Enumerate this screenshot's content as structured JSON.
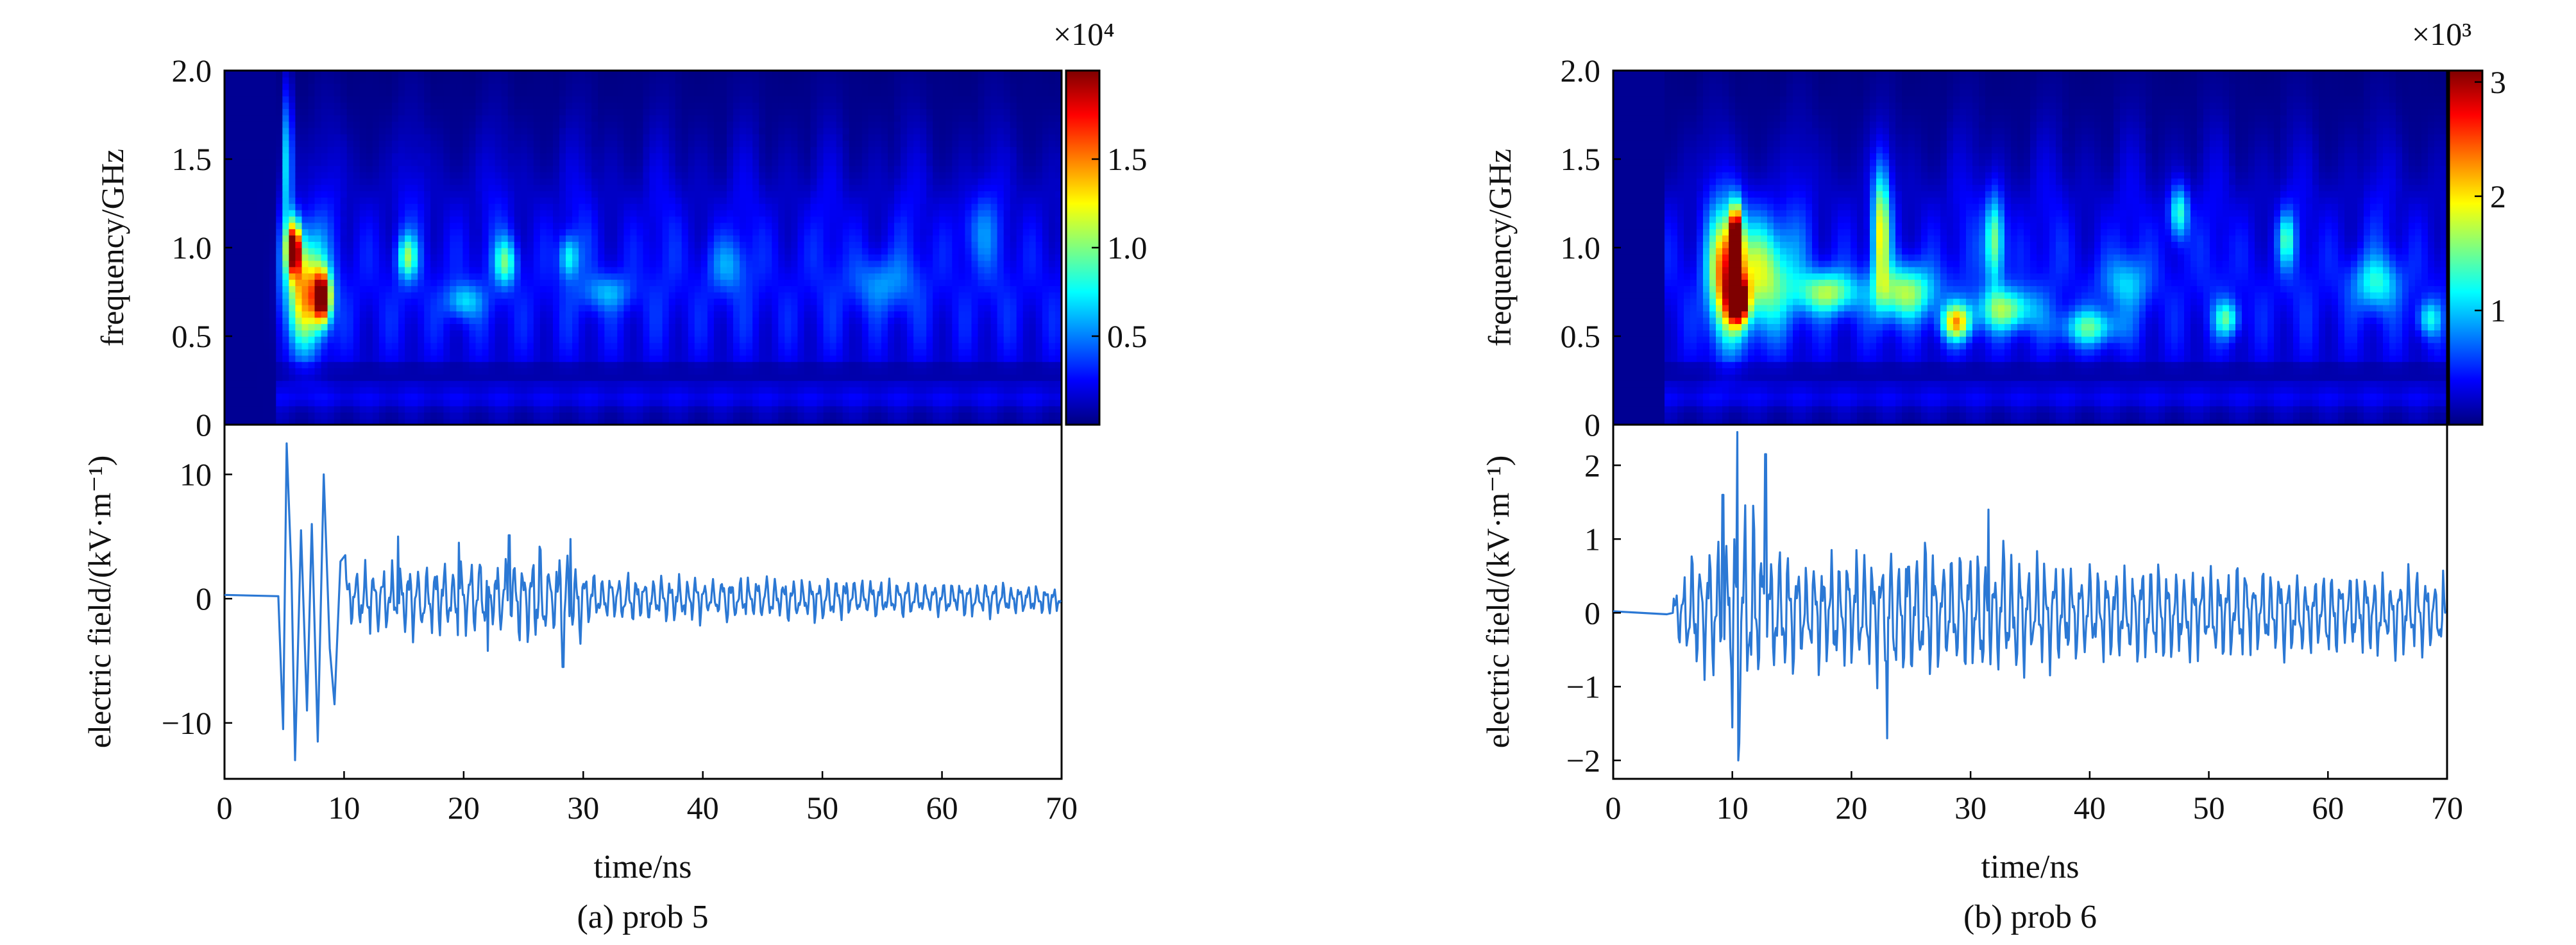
{
  "chart_data": [
    {
      "id": "a",
      "type": "heatmap",
      "caption": "(a) prob 5",
      "spectrogram": {
        "ylabel": "frequency/GHz",
        "ylim": [
          0,
          2.0
        ],
        "yticks": [
          {
            "v": 0,
            "label": "0"
          },
          {
            "v": 0.5,
            "label": "0.5"
          },
          {
            "v": 1.0,
            "label": "1.0"
          },
          {
            "v": 1.5,
            "label": "1.5"
          },
          {
            "v": 2.0,
            "label": "2.0"
          }
        ],
        "colorbar": {
          "scale_label": "×10⁴",
          "multiplier": 10000,
          "range": [
            0,
            2.0
          ],
          "ticks": [
            {
              "v": 0.5,
              "label": "0.5"
            },
            {
              "v": 1.0,
              "label": "1.0"
            },
            {
              "v": 1.5,
              "label": "1.5"
            }
          ],
          "colormap": [
            "#00007f",
            "#0000ff",
            "#007fff",
            "#00ffff",
            "#7fff7f",
            "#ffff00",
            "#ff7f00",
            "#ff0000",
            "#7f0000"
          ]
        },
        "hotspots": [
          {
            "t": 5.8,
            "f": 1.0,
            "value": 1.8,
            "dt": 0.6,
            "df": 0.15
          },
          {
            "t": 8.2,
            "f": 0.72,
            "value": 1.7,
            "dt": 0.7,
            "df": 0.14
          },
          {
            "t": 6.8,
            "f": 0.75,
            "value": 1.2,
            "dt": 1.5,
            "df": 0.3
          },
          {
            "t": 5.3,
            "f": 1.5,
            "value": 0.8,
            "dt": 0.35,
            "df": 0.4
          },
          {
            "t": 15.3,
            "f": 0.95,
            "value": 0.7,
            "dt": 0.8,
            "df": 0.12
          },
          {
            "t": 23.5,
            "f": 0.92,
            "value": 0.65,
            "dt": 0.9,
            "df": 0.13
          },
          {
            "t": 28.8,
            "f": 0.95,
            "value": 0.55,
            "dt": 0.8,
            "df": 0.12
          },
          {
            "t": 20.0,
            "f": 0.7,
            "value": 0.45,
            "dt": 1.5,
            "df": 0.1
          },
          {
            "t": 32.0,
            "f": 0.75,
            "value": 0.35,
            "dt": 2.0,
            "df": 0.1
          },
          {
            "t": 42.0,
            "f": 0.9,
            "value": 0.3,
            "dt": 1.5,
            "df": 0.15
          },
          {
            "t": 55.0,
            "f": 0.8,
            "value": 0.3,
            "dt": 2.5,
            "df": 0.15
          },
          {
            "t": 63.0,
            "f": 1.1,
            "value": 0.25,
            "dt": 1.5,
            "df": 0.2
          }
        ],
        "onset_t": 4.5
      },
      "waveform": {
        "ylabel": "electric field/(kV·m⁻¹)",
        "xlabel": "time/ns",
        "xlim": [
          0,
          70
        ],
        "ylim": [
          -14.5,
          14.0
        ],
        "xticks": [
          0,
          10,
          20,
          30,
          40,
          50,
          60,
          70
        ],
        "yticks": [
          {
            "v": -10,
            "label": "−10"
          },
          {
            "v": 0,
            "label": "0"
          },
          {
            "v": 10,
            "label": "10"
          }
        ],
        "series": [
          {
            "name": "prob 5",
            "color": "#2b78d4",
            "anchors": [
              [
                0,
                0.3
              ],
              [
                4.5,
                0.2
              ],
              [
                4.9,
                -10.5
              ],
              [
                5.2,
                12.5
              ],
              [
                5.6,
                2.0
              ],
              [
                5.9,
                -13.0
              ],
              [
                6.4,
                5.5
              ],
              [
                6.9,
                -9.0
              ],
              [
                7.3,
                6.0
              ],
              [
                7.8,
                -11.5
              ],
              [
                8.3,
                10.0
              ],
              [
                8.8,
                -4.0
              ],
              [
                9.2,
                -8.5
              ],
              [
                9.7,
                3.0
              ],
              [
                10.1,
                3.5
              ]
            ],
            "amplitude_envelope": [
              [
                10,
                3.0
              ],
              [
                13,
                3.5
              ],
              [
                20,
                4.0
              ],
              [
                24,
                4.5
              ],
              [
                29,
                4.5
              ],
              [
                31,
                2.5
              ],
              [
                45,
                2.2
              ],
              [
                55,
                2.0
              ],
              [
                70,
                1.5
              ]
            ],
            "peaks": [
              [
                14.5,
                5.0
              ],
              [
                19.6,
                4.5
              ],
              [
                23.8,
                5.1
              ],
              [
                28.9,
                4.8
              ],
              [
                28.3,
                -5.5
              ],
              [
                22.0,
                -4.2
              ]
            ],
            "samples_per_ns": 12,
            "seed": 7
          }
        ]
      }
    },
    {
      "id": "b",
      "type": "heatmap",
      "caption": "(b) prob 6",
      "spectrogram": {
        "ylabel": "frequency/GHz",
        "ylim": [
          0,
          2.0
        ],
        "yticks": [
          {
            "v": 0,
            "label": "0"
          },
          {
            "v": 0.5,
            "label": "0.5"
          },
          {
            "v": 1.0,
            "label": "1.0"
          },
          {
            "v": 1.5,
            "label": "1.5"
          },
          {
            "v": 2.0,
            "label": "2.0"
          }
        ],
        "colorbar": {
          "scale_label": "×10³",
          "multiplier": 1000,
          "range": [
            0,
            3.1
          ],
          "ticks": [
            {
              "v": 1,
              "label": "1"
            },
            {
              "v": 2,
              "label": "2"
            },
            {
              "v": 3,
              "label": "3"
            }
          ],
          "colormap": [
            "#00007f",
            "#0000ff",
            "#007fff",
            "#00ffff",
            "#7fff7f",
            "#ffff00",
            "#ff7f00",
            "#ff0000",
            "#7f0000"
          ]
        },
        "hotspots": [
          {
            "t": 10.3,
            "f": 1.05,
            "value": 3.0,
            "dt": 0.5,
            "df": 0.18
          },
          {
            "t": 10.5,
            "f": 0.7,
            "value": 2.8,
            "dt": 0.8,
            "df": 0.12
          },
          {
            "t": 9.5,
            "f": 0.85,
            "value": 2.0,
            "dt": 1.4,
            "df": 0.35
          },
          {
            "t": 12.5,
            "f": 0.85,
            "value": 1.4,
            "dt": 2.5,
            "df": 0.3
          },
          {
            "t": 18.0,
            "f": 0.75,
            "value": 1.3,
            "dt": 2.5,
            "df": 0.12
          },
          {
            "t": 22.5,
            "f": 1.1,
            "value": 1.5,
            "dt": 0.7,
            "df": 0.35
          },
          {
            "t": 24.5,
            "f": 0.75,
            "value": 1.3,
            "dt": 2.5,
            "df": 0.15
          },
          {
            "t": 28.8,
            "f": 0.58,
            "value": 1.7,
            "dt": 1.2,
            "df": 0.1
          },
          {
            "t": 32.0,
            "f": 1.05,
            "value": 1.3,
            "dt": 0.8,
            "df": 0.25
          },
          {
            "t": 33.0,
            "f": 0.65,
            "value": 1.2,
            "dt": 2.5,
            "df": 0.12
          },
          {
            "t": 40.0,
            "f": 0.55,
            "value": 1.0,
            "dt": 2.5,
            "df": 0.1
          },
          {
            "t": 47.5,
            "f": 1.2,
            "value": 1.1,
            "dt": 0.8,
            "df": 0.15
          },
          {
            "t": 51.5,
            "f": 0.6,
            "value": 1.0,
            "dt": 1.0,
            "df": 0.1
          },
          {
            "t": 56.5,
            "f": 1.05,
            "value": 0.9,
            "dt": 0.7,
            "df": 0.15
          },
          {
            "t": 64.0,
            "f": 0.8,
            "value": 0.8,
            "dt": 2.0,
            "df": 0.15
          },
          {
            "t": 68.5,
            "f": 0.6,
            "value": 0.8,
            "dt": 1.0,
            "df": 0.1
          },
          {
            "t": 43.0,
            "f": 0.8,
            "value": 0.6,
            "dt": 2.0,
            "df": 0.15
          }
        ],
        "onset_t": 4.5
      },
      "waveform": {
        "ylabel": "electric field/(kV·m⁻¹)",
        "xlabel": "time/ns",
        "xlim": [
          0,
          70
        ],
        "ylim": [
          -2.25,
          2.55
        ],
        "xticks": [
          0,
          10,
          20,
          30,
          40,
          50,
          60,
          70
        ],
        "yticks": [
          {
            "v": -2,
            "label": "−2"
          },
          {
            "v": -1,
            "label": "−1"
          },
          {
            "v": 0,
            "label": "0"
          },
          {
            "v": 1,
            "label": "1"
          },
          {
            "v": 2,
            "label": "2"
          }
        ],
        "series": [
          {
            "name": "prob 6",
            "color": "#2b78d4",
            "anchors": [
              [
                0,
                0.0
              ],
              [
                4.5,
                0.0
              ],
              [
                5.0,
                0.0
              ]
            ],
            "amplitude_envelope": [
              [
                5,
                0.4
              ],
              [
                7,
                1.0
              ],
              [
                9,
                1.4
              ],
              [
                10.5,
                2.0
              ],
              [
                12,
                1.5
              ],
              [
                14,
                1.0
              ],
              [
                20,
                1.0
              ],
              [
                23,
                1.2
              ],
              [
                32,
                1.1
              ],
              [
                40,
                0.8
              ],
              [
                50,
                0.8
              ],
              [
                60,
                0.7
              ],
              [
                70,
                0.7
              ]
            ],
            "peaks": [
              [
                10.4,
                2.45
              ],
              [
                10.5,
                -2.0
              ],
              [
                12.8,
                2.15
              ],
              [
                23.0,
                -1.7
              ],
              [
                31.5,
                1.4
              ],
              [
                9.2,
                1.6
              ]
            ],
            "samples_per_ns": 12,
            "seed": 11
          }
        ]
      }
    }
  ]
}
